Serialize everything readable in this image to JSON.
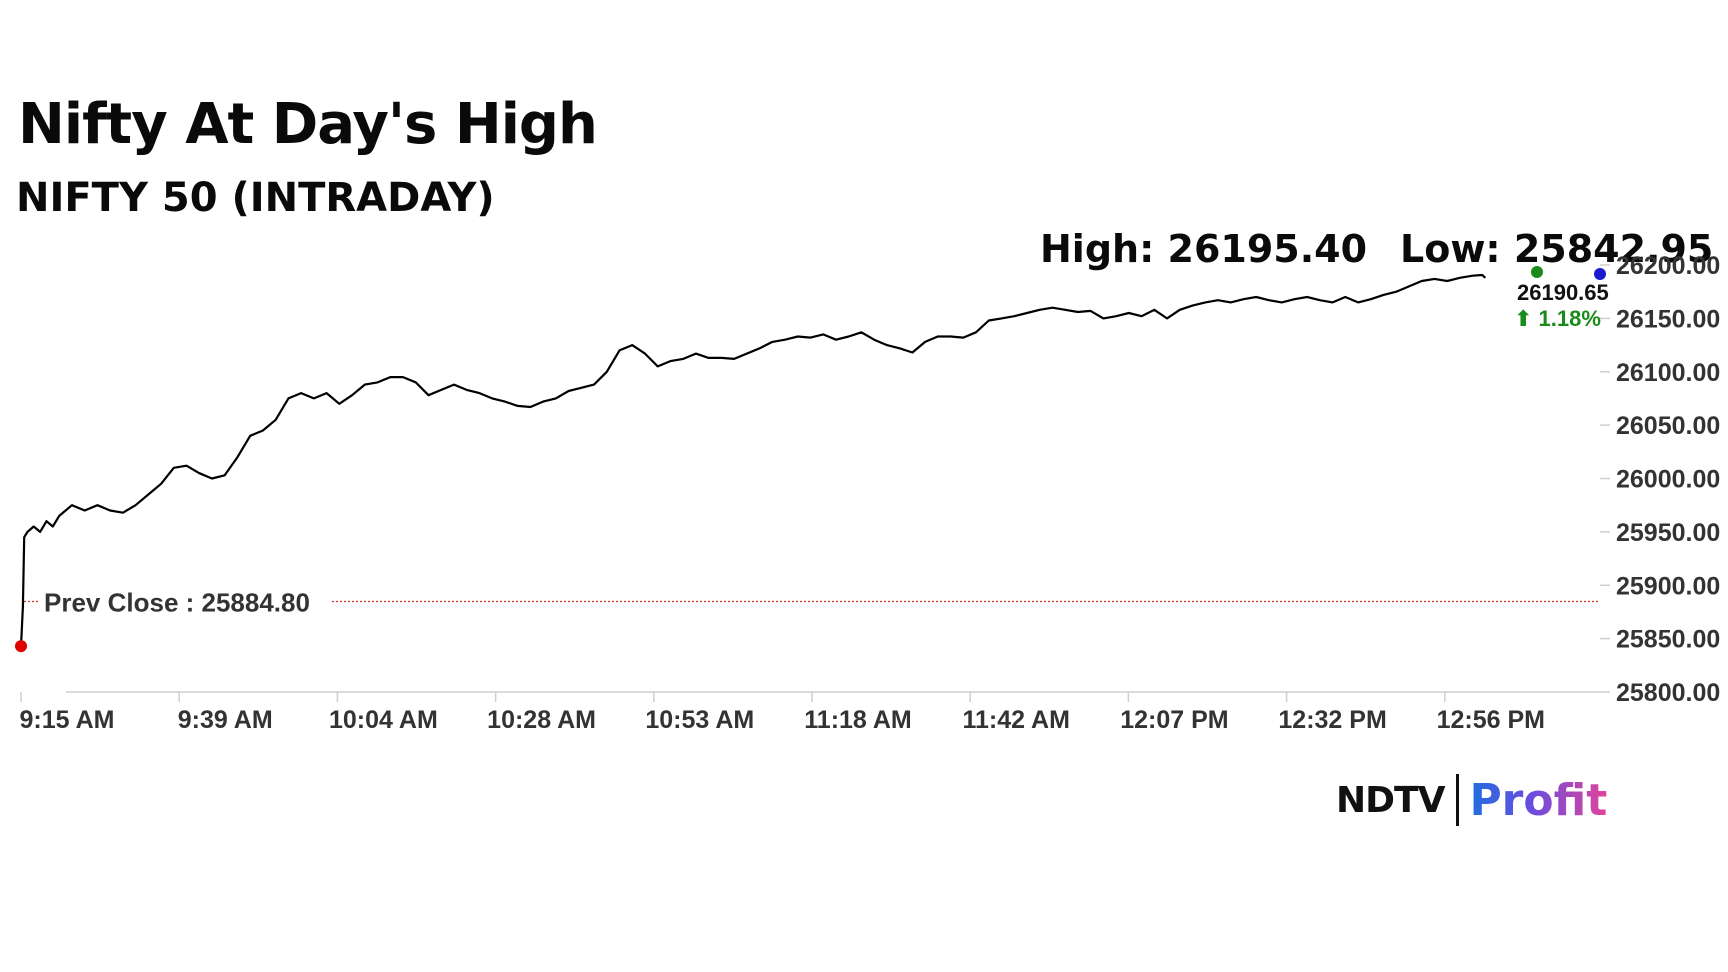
{
  "header": {
    "title": "Nifty At Day's High",
    "subtitle": "NIFTY 50 (INTRADAY)",
    "high_label": "High: 26195.40",
    "low_label": "Low: 25842.95"
  },
  "logo": {
    "brand": "NDTV",
    "product": "Profit"
  },
  "colors": {
    "line": "#000000",
    "prev_close_line": "#c0392b",
    "start_marker": "#e00000",
    "up": "#1a8a1a",
    "high_marker": "#1a8a1a",
    "low_marker": "#1a1acc",
    "axis_text": "#333333"
  },
  "chart_data": {
    "type": "line",
    "title": "NIFTY 50 (INTRADAY)",
    "xlabel": "",
    "ylabel": "",
    "x_ticks": [
      "9:15 AM",
      "9:39 AM",
      "10:04 AM",
      "10:28 AM",
      "10:53 AM",
      "11:18 AM",
      "11:42 AM",
      "12:07 PM",
      "12:32 PM",
      "12:56 PM"
    ],
    "y_ticks": [
      "25800.00",
      "25850.00",
      "25900.00",
      "25950.00",
      "26000.00",
      "26050.00",
      "26100.00",
      "26150.00",
      "26200.00"
    ],
    "ylim": [
      25800,
      26200
    ],
    "x_range_minutes": [
      0,
      248
    ],
    "prev_close": 25884.8,
    "prev_close_label": "Prev Close : 25884.80",
    "last_value_label": "26190.65",
    "change_label": "1.18%",
    "change_arrow": "⬆",
    "high": 26195.4,
    "low": 25842.95,
    "grid": false,
    "series": [
      {
        "x_minutes": [
          0,
          0.3,
          0.5,
          1,
          2,
          3,
          4,
          5,
          6,
          8,
          10,
          12,
          14,
          16,
          18,
          20,
          22,
          24,
          26,
          28,
          30,
          32,
          34,
          36,
          38,
          40,
          42,
          44,
          46,
          48,
          50,
          52,
          54,
          56,
          58,
          60,
          62,
          64,
          66,
          68,
          70,
          72,
          74,
          76,
          78,
          80,
          82,
          84,
          86,
          88,
          90,
          92,
          94,
          96,
          98,
          100,
          102,
          104,
          106,
          108,
          110,
          112,
          114,
          116,
          118,
          120,
          122,
          124,
          126,
          128,
          130,
          132,
          134,
          136,
          138,
          140,
          142,
          144,
          146,
          148,
          150,
          152,
          154,
          156,
          158,
          160,
          162,
          164,
          166,
          168,
          170,
          172,
          174,
          176,
          178,
          180,
          182,
          184,
          186,
          188,
          190,
          192,
          194,
          196,
          198,
          200,
          202,
          204,
          206,
          208,
          210,
          212,
          214,
          216,
          218,
          220,
          222,
          224,
          226,
          228,
          229.5,
          230
        ],
        "values": [
          25842.95,
          25880,
          25945,
          25950,
          25955,
          25950,
          25960,
          25955,
          25965,
          25975,
          25970,
          25975,
          25970,
          25968,
          25975,
          25985,
          25995,
          26010,
          26012,
          26005,
          26000,
          26003,
          26020,
          26040,
          26045,
          26055,
          26075,
          26080,
          26075,
          26080,
          26070,
          26078,
          26088,
          26090,
          26095,
          26095,
          26090,
          26078,
          26083,
          26088,
          26083,
          26080,
          26075,
          26072,
          26068,
          26067,
          26072,
          26075,
          26082,
          26085,
          26088,
          26100,
          26120,
          26125,
          26117,
          26105,
          26110,
          26112,
          26117,
          26113,
          26113,
          26112,
          26117,
          26122,
          26128,
          26130,
          26133,
          26132,
          26135,
          26130,
          26133,
          26137,
          26130,
          26125,
          26122,
          26118,
          26128,
          26133,
          26133,
          26132,
          26137,
          26148,
          26150,
          26152,
          26155,
          26158,
          26160,
          26158,
          26156,
          26157,
          26150,
          26152,
          26155,
          26152,
          26158,
          26150,
          26158,
          26162,
          26165,
          26167,
          26165,
          26168,
          26170,
          26167,
          26165,
          26168,
          26170,
          26167,
          26165,
          26170,
          26165,
          26168,
          26172,
          26175,
          26180,
          26185,
          26187,
          26185,
          26188,
          26190,
          26190.65,
          26188
        ]
      }
    ]
  }
}
